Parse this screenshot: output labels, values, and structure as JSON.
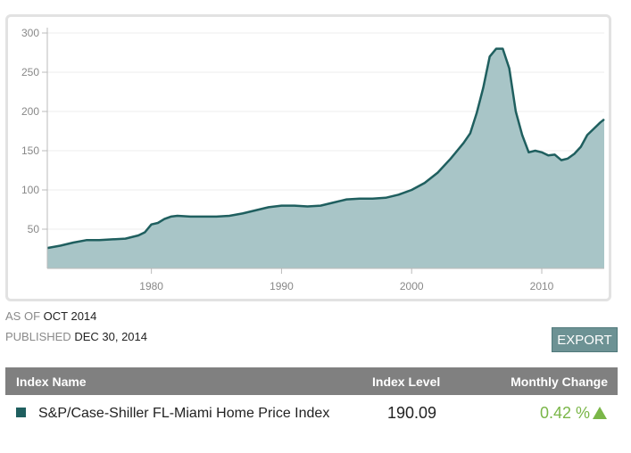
{
  "chart_data": {
    "type": "area",
    "title": "",
    "xlabel": "",
    "ylabel": "",
    "xlim": [
      1972,
      2014.8
    ],
    "ylim": [
      0,
      300
    ],
    "yticks": [
      50,
      100,
      150,
      200,
      250,
      300
    ],
    "xticks": [
      1980,
      1990,
      2000,
      2010
    ],
    "grid": true,
    "colors": {
      "line": "#1f5f5f",
      "fill": "#a8c5c7"
    },
    "series": [
      {
        "x": [
          1972,
          1973,
          1974,
          1975,
          1976,
          1977,
          1978,
          1979,
          1979.5,
          1980,
          1980.5,
          1981,
          1981.5,
          1982,
          1983,
          1984,
          1985,
          1986,
          1987,
          1988,
          1989,
          1990,
          1991,
          1992,
          1993,
          1994,
          1995,
          1996,
          1997,
          1998,
          1999,
          2000,
          2001,
          2002,
          2003,
          2004,
          2004.5,
          2005,
          2005.5,
          2006,
          2006.5,
          2007,
          2007.5,
          2008,
          2008.5,
          2009,
          2009.5,
          2010,
          2010.5,
          2011,
          2011.5,
          2012,
          2012.5,
          2013,
          2013.5,
          2014,
          2014.5,
          2014.8
        ],
        "y": [
          26,
          29,
          33,
          36,
          36,
          37,
          38,
          42,
          46,
          56,
          58,
          63,
          66,
          67,
          66,
          66,
          66,
          67,
          70,
          74,
          78,
          80,
          80,
          79,
          80,
          84,
          88,
          89,
          89,
          90,
          94,
          100,
          109,
          122,
          140,
          160,
          172,
          198,
          230,
          270,
          280,
          280,
          255,
          200,
          170,
          148,
          150,
          148,
          144,
          145,
          138,
          140,
          146,
          155,
          170,
          178,
          186,
          190
        ]
      }
    ]
  },
  "meta": {
    "as_of_label": "AS OF",
    "as_of_value": "OCT 2014",
    "published_label": "PUBLISHED",
    "published_value": "DEC 30, 2014"
  },
  "export_label": "EXPORT",
  "table": {
    "headers": {
      "name": "Index Name",
      "level": "Index Level",
      "change": "Monthly Change"
    },
    "row": {
      "name": "S&P/Case-Shiller FL-Miami Home Price Index",
      "level": "190.09",
      "change": "0.42 %",
      "swatch_color": "#1f5f5f",
      "change_color": "#7ab648",
      "change_direction_icon": "up-arrow-icon"
    }
  }
}
